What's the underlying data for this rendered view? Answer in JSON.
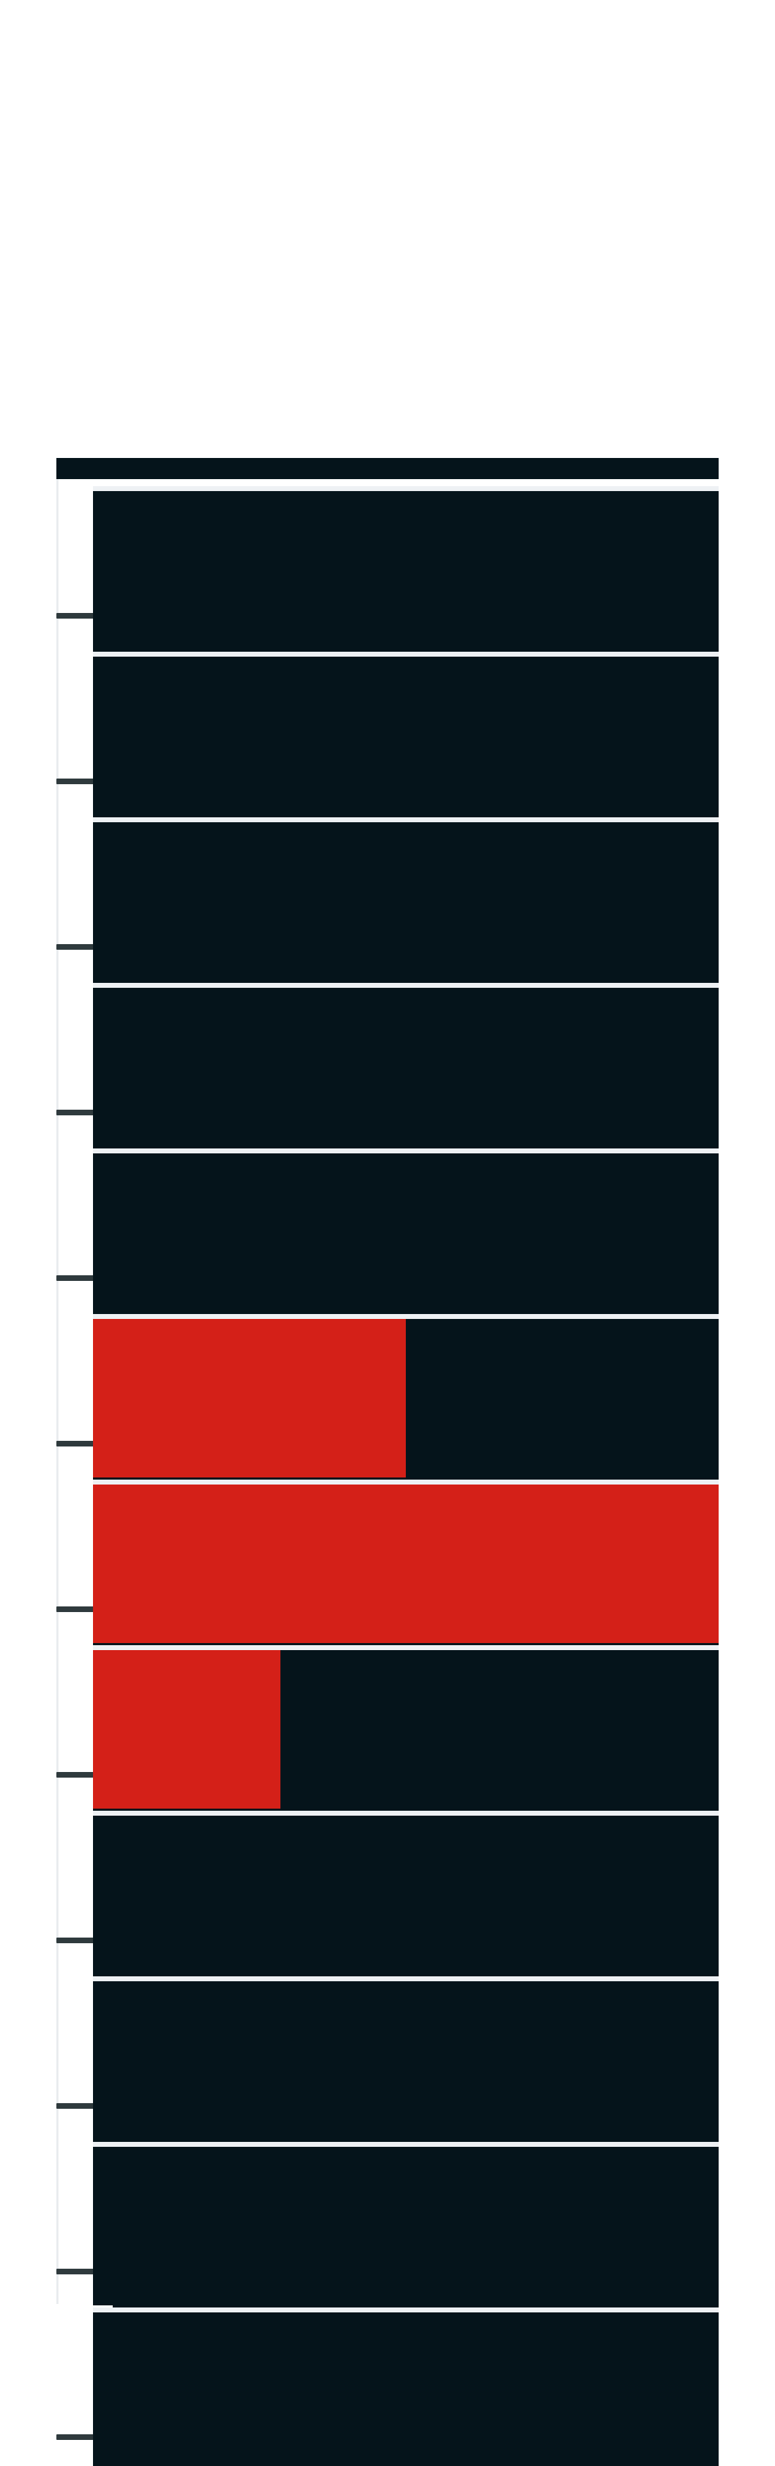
{
  "colors": {
    "background": "#ffffff",
    "panel": "#05141b",
    "separator": "#eef1f4",
    "active_fill": "#d42018",
    "tick": "#2f3a3d"
  },
  "meter": {
    "rows": [
      {
        "level": 0
      },
      {
        "level": 0
      },
      {
        "level": 0
      },
      {
        "level": 0
      },
      {
        "level": 0
      },
      {
        "level": 0.5
      },
      {
        "level": 1.0
      },
      {
        "level": 0.3
      },
      {
        "level": 0
      },
      {
        "level": 0
      },
      {
        "level": 0
      },
      {
        "level": 0
      }
    ]
  }
}
